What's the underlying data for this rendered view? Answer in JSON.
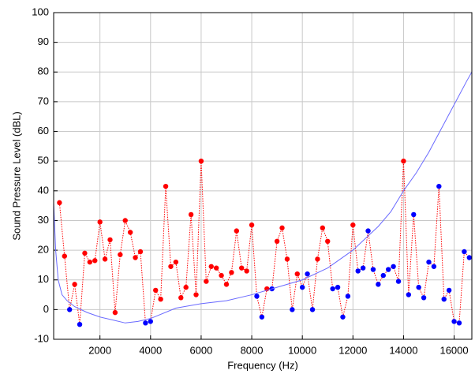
{
  "chart_data": {
    "type": "line",
    "x_label": "Frequency (Hz)",
    "y_label": "Sound Pressure Level (dBL)",
    "x": [
      400,
      600,
      800,
      1000,
      1200,
      1400,
      1600,
      1800,
      2000,
      2200,
      2400,
      2600,
      2800,
      3000,
      3200,
      3400,
      3600,
      3800,
      4000,
      4200,
      4400,
      4600,
      4800,
      5000,
      5200,
      5400,
      5600,
      5800,
      6000,
      6200,
      6400,
      6600,
      6800,
      7000,
      7200,
      7400,
      7600,
      7800,
      8000,
      8200,
      8400,
      8600,
      8800,
      9000,
      9200,
      9400,
      9600,
      9800,
      10000,
      10200,
      10400,
      10600,
      10800,
      11000,
      11200,
      11400,
      11600,
      11800,
      12000,
      12200,
      12400,
      12600,
      12800,
      13000,
      13200,
      13400,
      13600,
      13800,
      14000,
      14200,
      14400,
      14600,
      14800,
      15000,
      15200,
      15400,
      15600,
      15800,
      16000,
      16200,
      16400,
      16600
    ],
    "series": [
      {
        "color": "#ff0000",
        "line_style": "dotted",
        "values": [
          36,
          18,
          0,
          8.5,
          -5,
          19,
          16,
          16.5,
          29.5,
          17,
          23.5,
          -1,
          18.5,
          30,
          26,
          17.5,
          19.5,
          -4.5,
          -4,
          6.5,
          3.5,
          41.5,
          14.5,
          16,
          4,
          7.5,
          32,
          5,
          50,
          9.5,
          14.5,
          14,
          11.5,
          8.5,
          12.5,
          26.5,
          14,
          13,
          28.5,
          4.5,
          -2.5,
          7,
          7,
          23,
          27.5,
          17,
          0,
          12,
          7.5,
          12,
          0,
          17,
          27.5,
          23,
          7,
          7.5,
          -2.5,
          4.5,
          28.5,
          13,
          14,
          26.5,
          13.5,
          8.5,
          11.5,
          13.5,
          14.5,
          9.5,
          50,
          5,
          32,
          7.5,
          4,
          16,
          14.5,
          41.5,
          3.5,
          6.5,
          -4,
          -4.5,
          19.5,
          17.5
        ],
        "marker_colors": [
          "#ff0000",
          "#ff0000",
          "#0000ff",
          "#ff0000",
          "#0000ff",
          "#ff0000",
          "#ff0000",
          "#ff0000",
          "#ff0000",
          "#ff0000",
          "#ff0000",
          "#ff0000",
          "#ff0000",
          "#ff0000",
          "#ff0000",
          "#ff0000",
          "#ff0000",
          "#0000ff",
          "#0000ff",
          "#ff0000",
          "#ff0000",
          "#ff0000",
          "#ff0000",
          "#ff0000",
          "#ff0000",
          "#ff0000",
          "#ff0000",
          "#ff0000",
          "#ff0000",
          "#ff0000",
          "#ff0000",
          "#ff0000",
          "#ff0000",
          "#ff0000",
          "#ff0000",
          "#ff0000",
          "#ff0000",
          "#ff0000",
          "#ff0000",
          "#0000ff",
          "#0000ff",
          "#ff0000",
          "#0000ff",
          "#ff0000",
          "#ff0000",
          "#ff0000",
          "#0000ff",
          "#ff0000",
          "#0000ff",
          "#0000ff",
          "#0000ff",
          "#ff0000",
          "#ff0000",
          "#ff0000",
          "#0000ff",
          "#0000ff",
          "#0000ff",
          "#0000ff",
          "#ff0000",
          "#0000ff",
          "#0000ff",
          "#0000ff",
          "#0000ff",
          "#0000ff",
          "#0000ff",
          "#0000ff",
          "#0000ff",
          "#0000ff",
          "#ff0000",
          "#0000ff",
          "#0000ff",
          "#0000ff",
          "#0000ff",
          "#0000ff",
          "#0000ff",
          "#0000ff",
          "#0000ff",
          "#0000ff",
          "#0000ff",
          "#0000ff",
          "#0000ff",
          "#0000ff"
        ]
      },
      {
        "color": "#6a6aff",
        "line_style": "solid",
        "x": [
          170,
          250,
          350,
          500,
          700,
          1000,
          1500,
          2000,
          2500,
          3000,
          3500,
          4000,
          5000,
          6000,
          7000,
          8000,
          9000,
          10000,
          11000,
          12000,
          12500,
          13000,
          13500,
          14000,
          14500,
          15000,
          15500,
          16000,
          16500,
          16700
        ],
        "values": [
          36,
          20,
          10,
          5,
          3,
          1,
          -1,
          -2.5,
          -3.5,
          -4.5,
          -4,
          -3,
          0.5,
          2,
          3,
          5,
          7.5,
          10,
          14,
          20,
          24,
          28,
          33,
          40,
          46,
          53,
          61,
          69,
          77,
          80
        ]
      }
    ],
    "xlim": [
      170,
      16700
    ],
    "ylim": [
      -10,
      100
    ],
    "xticks": [
      2000,
      4000,
      6000,
      8000,
      10000,
      12000,
      14000,
      16000
    ],
    "yticks": [
      -10,
      0,
      10,
      20,
      30,
      40,
      50,
      60,
      70,
      80,
      90,
      100
    ],
    "grid": true
  }
}
